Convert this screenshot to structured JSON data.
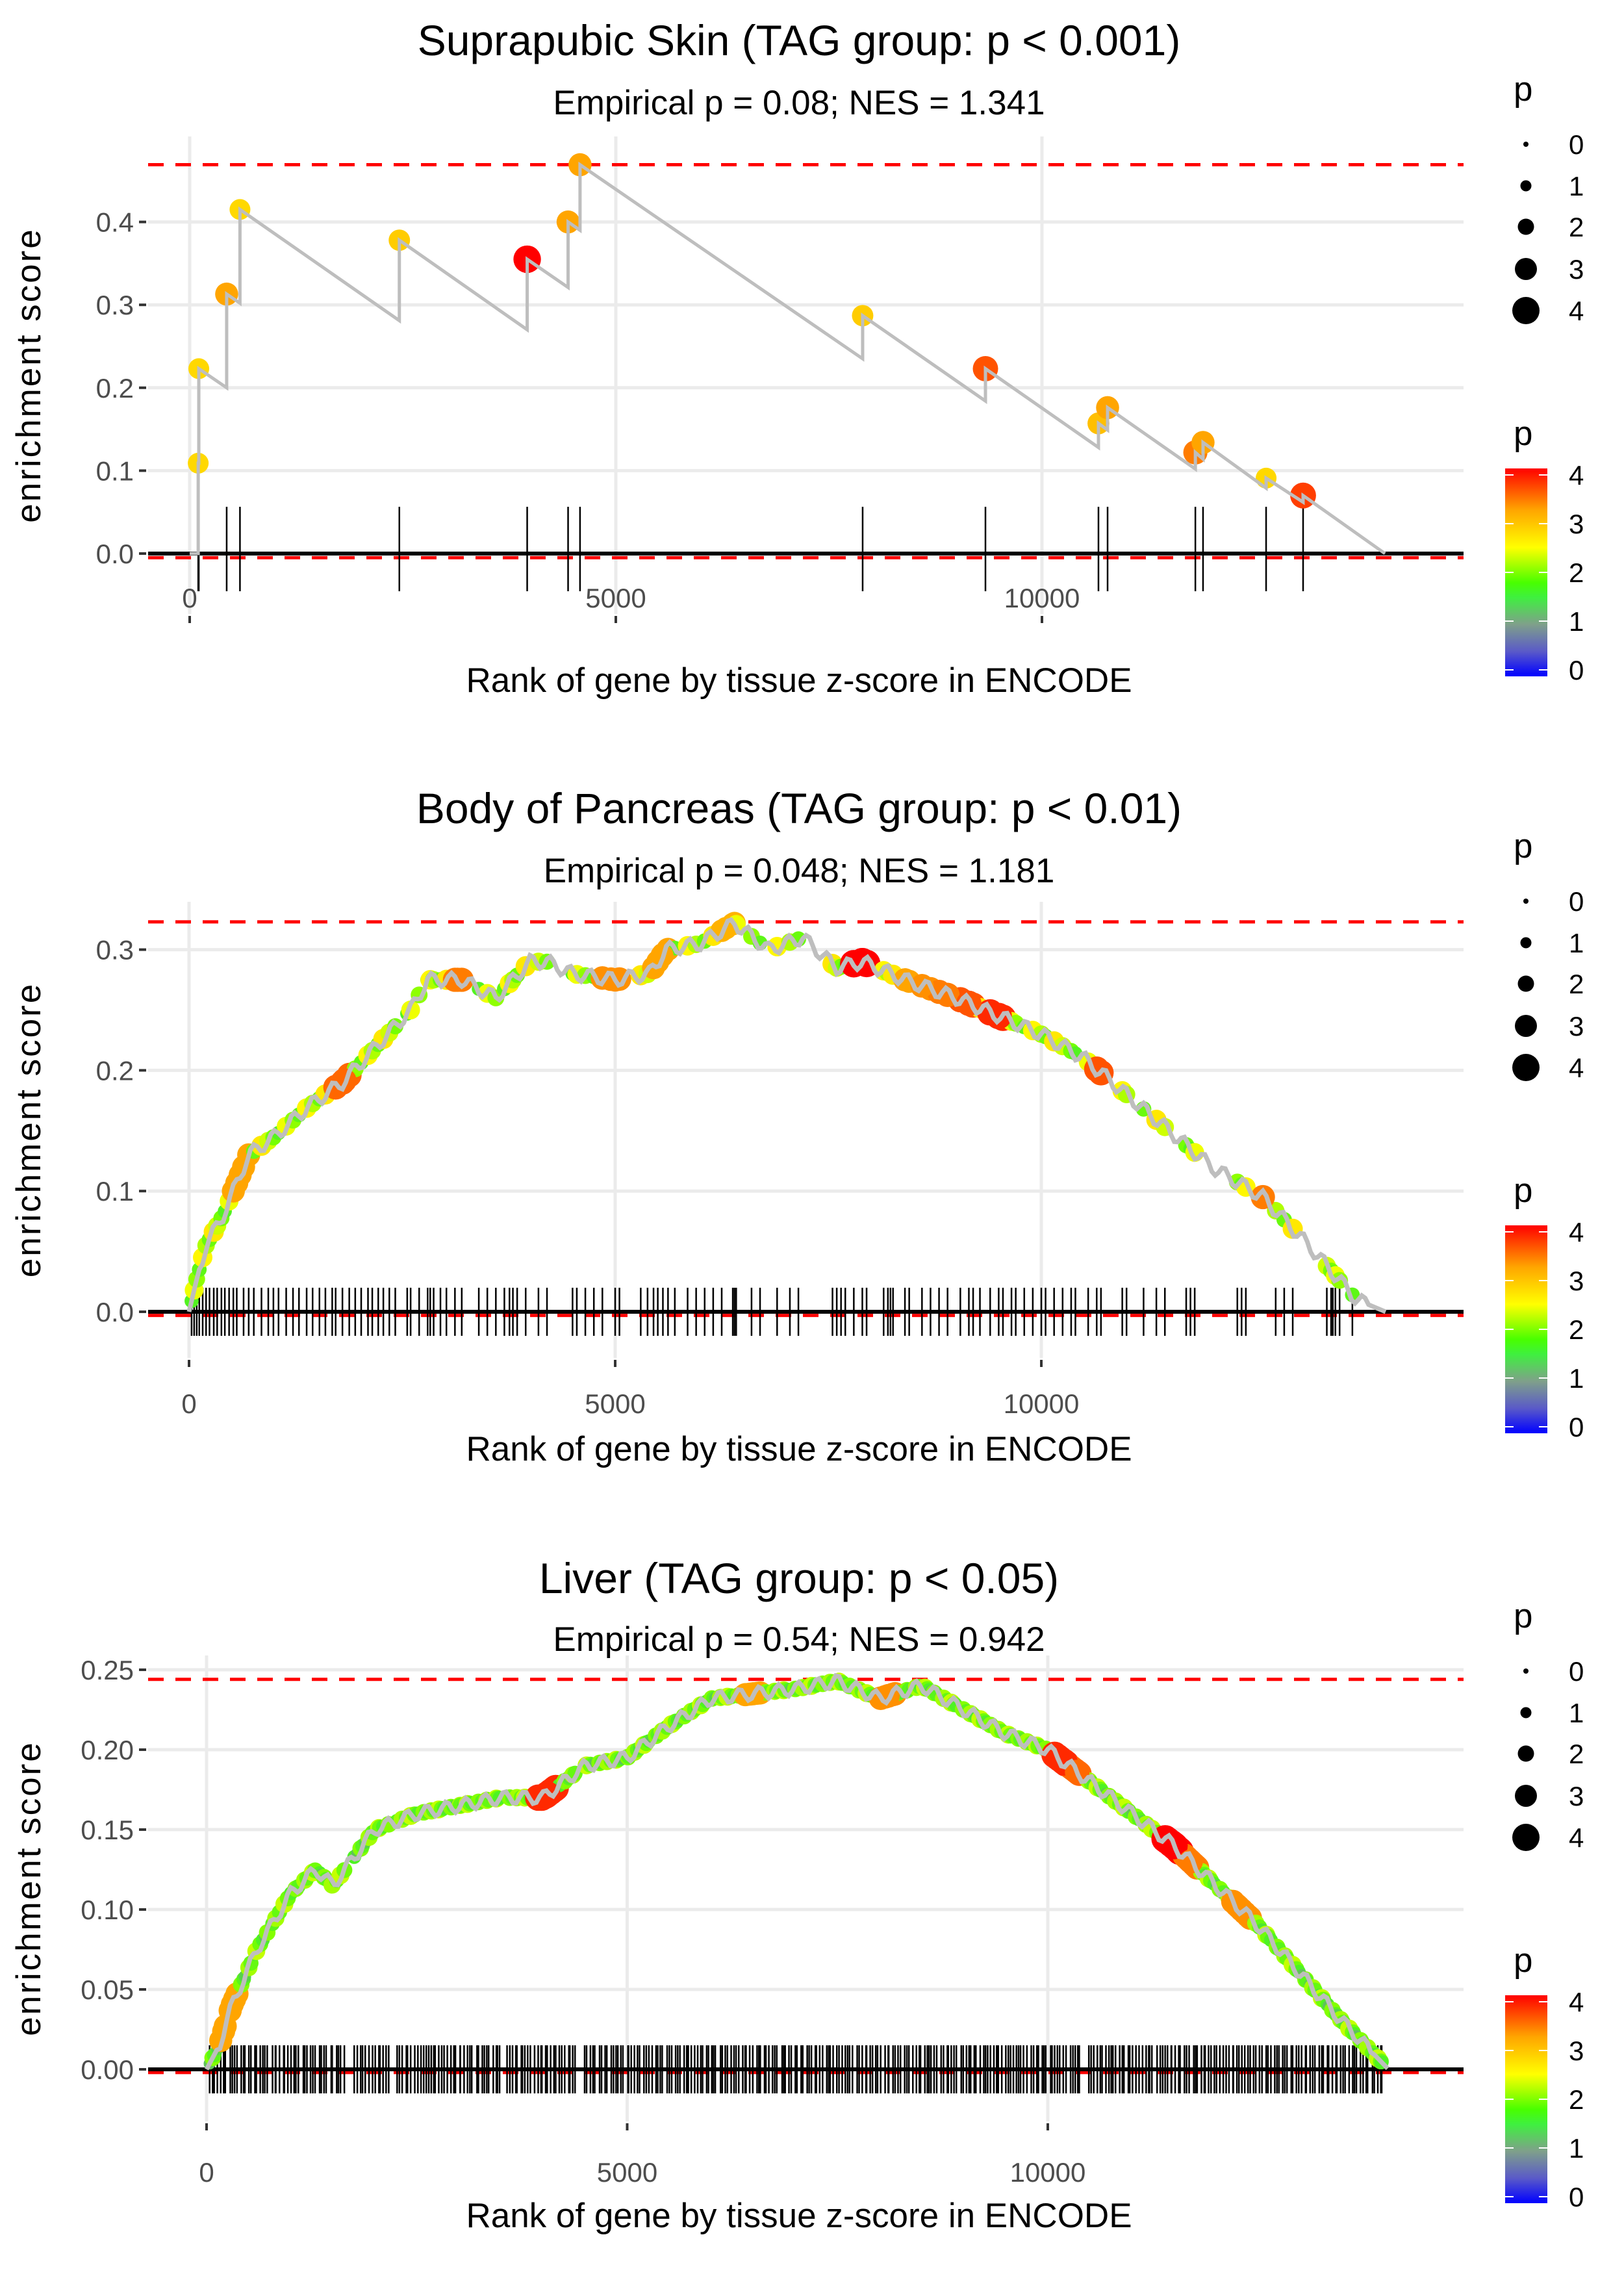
{
  "chart_data": [
    {
      "type": "line",
      "id": "suprapubic-skin",
      "title": "Suprapubic Skin (TAG group: p < 0.001)",
      "subtitle": "Empirical p = 0.08; NES = 1.341",
      "xlabel": "Rank of gene by tissue z-score in ENCODE",
      "ylabel": "enrichment score",
      "xlim": [
        -900,
        14900
      ],
      "ylim": [
        -0.06,
        0.5
      ],
      "x_ticks": [
        0,
        5000,
        10000
      ],
      "x_tick_labels": [
        "0",
        "5000",
        "10000"
      ],
      "y_ticks": [
        0.0,
        0.1,
        0.2,
        0.3,
        0.4
      ],
      "y_tick_labels": [
        "0.0",
        "0.1",
        "0.2",
        "0.3",
        "0.4"
      ],
      "max_es_line": 0.469,
      "min_es_line": -0.005,
      "n_genes": 14025,
      "hits": [
        {
          "rank": 100,
          "es_before": 0.0,
          "es": 0.109,
          "p": 2.8
        },
        {
          "rank": 107,
          "es_before": 0.109,
          "es": 0.223,
          "p": 2.8
        },
        {
          "rank": 434,
          "es_before": 0.2,
          "es": 0.313,
          "p": 3.2
        },
        {
          "rank": 590,
          "es_before": 0.302,
          "es": 0.415,
          "p": 2.8
        },
        {
          "rank": 2460,
          "es_before": 0.281,
          "es": 0.378,
          "p": 2.9
        },
        {
          "rank": 3960,
          "es_before": 0.27,
          "es": 0.355,
          "p": 4.0
        },
        {
          "rank": 4440,
          "es_before": 0.321,
          "es": 0.4,
          "p": 3.2
        },
        {
          "rank": 4580,
          "es_before": 0.39,
          "es": 0.469,
          "p": 3.2
        },
        {
          "rank": 7896,
          "es_before": 0.235,
          "es": 0.287,
          "p": 2.9
        },
        {
          "rank": 9337,
          "es_before": 0.184,
          "es": 0.223,
          "p": 3.6
        },
        {
          "rank": 10663,
          "es_before": 0.128,
          "es": 0.157,
          "p": 3.0
        },
        {
          "rank": 10770,
          "es_before": 0.149,
          "es": 0.176,
          "p": 3.2
        },
        {
          "rank": 11800,
          "es_before": 0.102,
          "es": 0.122,
          "p": 3.4
        },
        {
          "rank": 11890,
          "es_before": 0.114,
          "es": 0.134,
          "p": 3.2
        },
        {
          "rank": 12630,
          "es_before": 0.079,
          "es": 0.091,
          "p": 2.8
        },
        {
          "rank": 13064,
          "es_before": 0.062,
          "es": 0.07,
          "p": 3.7
        }
      ],
      "legend_size": {
        "title": "p",
        "values": [
          "0",
          "1",
          "2",
          "3",
          "4"
        ]
      },
      "legend_color": {
        "title": "p",
        "values": [
          "4",
          "3",
          "2",
          "1",
          "0"
        ]
      }
    },
    {
      "type": "line",
      "id": "body-of-pancreas",
      "title": "Body of Pancreas (TAG group: p < 0.01)",
      "subtitle": "Empirical p = 0.048; NES = 1.181",
      "xlabel": "Rank of gene by tissue z-score in ENCODE",
      "ylabel": "enrichment score",
      "xlim": [
        -900,
        14900
      ],
      "ylim": [
        -0.03,
        0.345
      ],
      "x_ticks": [
        0,
        5000,
        10000
      ],
      "x_tick_labels": [
        "0",
        "5000",
        "10000"
      ],
      "y_ticks": [
        0.0,
        0.1,
        0.2,
        0.3
      ],
      "y_tick_labels": [
        "0.0",
        "0.1",
        "0.2",
        "0.3"
      ],
      "max_es_line": 0.323,
      "min_es_line": -0.003,
      "n_genes": 14040,
      "curve": [
        [
          0,
          0
        ],
        [
          100,
          0.03
        ],
        [
          200,
          0.055
        ],
        [
          400,
          0.08
        ],
        [
          700,
          0.13
        ],
        [
          1000,
          0.145
        ],
        [
          1400,
          0.17
        ],
        [
          1800,
          0.19
        ],
        [
          2200,
          0.22
        ],
        [
          2600,
          0.25
        ],
        [
          2800,
          0.275
        ],
        [
          3200,
          0.275
        ],
        [
          3600,
          0.26
        ],
        [
          4000,
          0.29
        ],
        [
          4200,
          0.29
        ],
        [
          4500,
          0.28
        ],
        [
          5000,
          0.275
        ],
        [
          5400,
          0.28
        ],
        [
          5600,
          0.3
        ],
        [
          6000,
          0.305
        ],
        [
          6400,
          0.322
        ],
        [
          6800,
          0.3
        ],
        [
          7200,
          0.31
        ],
        [
          7600,
          0.285
        ],
        [
          7900,
          0.29
        ],
        [
          8400,
          0.275
        ],
        [
          9000,
          0.26
        ],
        [
          9500,
          0.245
        ],
        [
          10000,
          0.23
        ],
        [
          10500,
          0.21
        ],
        [
          11000,
          0.18
        ],
        [
          11500,
          0.15
        ],
        [
          12000,
          0.12
        ],
        [
          12600,
          0.095
        ],
        [
          13200,
          0.05
        ],
        [
          13700,
          0.01
        ],
        [
          14040,
          0
        ]
      ],
      "hit_ranks": [
        30,
        60,
        90,
        120,
        160,
        200,
        240,
        290,
        330,
        380,
        420,
        470,
        520,
        560,
        640,
        700,
        760,
        850,
        930,
        990,
        1050,
        1140,
        1220,
        1290,
        1380,
        1450,
        1530,
        1600,
        1680,
        1720,
        1800,
        1880,
        1950,
        2020,
        2100,
        2150,
        2220,
        2280,
        2350,
        2420,
        2560,
        2600,
        2700,
        2800,
        2830,
        2870,
        2950,
        3020,
        3120,
        3200,
        3400,
        3500,
        3600,
        3700,
        3760,
        3800,
        3850,
        3950,
        4100,
        4200,
        4500,
        4550,
        4650,
        4750,
        4850,
        5000,
        5050,
        5300,
        5380,
        5450,
        5500,
        5560,
        5620,
        5700,
        5850,
        5950,
        6050,
        6150,
        6250,
        6380,
        6400,
        6420,
        6600,
        6700,
        6900,
        7050,
        7150,
        7550,
        7600,
        7650,
        7700,
        7800,
        7900,
        7950,
        8150,
        8200,
        8230,
        8260,
        8400,
        8450,
        8600,
        8700,
        8800,
        8900,
        9050,
        9150,
        9200,
        9280,
        9400,
        9500,
        9550,
        9650,
        9700,
        9800,
        9900,
        10000,
        10050,
        10150,
        10250,
        10350,
        10400,
        10550,
        10650,
        10700,
        10950,
        11000,
        11200,
        11350,
        11450,
        11700,
        11750,
        11800,
        12300,
        12350,
        12400,
        12750,
        12850,
        12950,
        13350,
        13400,
        13420,
        13450,
        13500,
        13650
      ],
      "p_highlights": [
        [
          600,
          3.2
        ],
        [
          1820,
          3.5
        ],
        [
          3150,
          3.4
        ],
        [
          4950,
          3.3
        ],
        [
          5550,
          3.2
        ],
        [
          6300,
          3.1
        ],
        [
          7900,
          4.0
        ],
        [
          8400,
          3.2
        ],
        [
          8600,
          3.3
        ],
        [
          8900,
          3.4
        ],
        [
          9150,
          3.6
        ],
        [
          9500,
          3.8
        ],
        [
          10700,
          3.6
        ],
        [
          12600,
          3.4
        ]
      ],
      "p_default": 2.2,
      "legend_size": {
        "title": "p",
        "values": [
          "0",
          "1",
          "2",
          "3",
          "4"
        ]
      },
      "legend_color": {
        "title": "p",
        "values": [
          "4",
          "3",
          "2",
          "1",
          "0"
        ]
      }
    },
    {
      "type": "line",
      "id": "liver",
      "title": "Liver (TAG group: p < 0.05)",
      "subtitle": "Empirical p = 0.54; NES = 0.942",
      "xlabel": "Rank of gene by tissue z-score in ENCODE",
      "ylabel": "enrichment score",
      "xlim": [
        -900,
        14900
      ],
      "ylim": [
        -0.018,
        0.258
      ],
      "x_ticks": [
        0,
        5000,
        10000
      ],
      "x_tick_labels": [
        "0",
        "5000",
        "10000"
      ],
      "y_ticks": [
        0.0,
        0.05,
        0.1,
        0.15,
        0.2,
        0.25
      ],
      "y_tick_labels": [
        "0.00",
        "0.05",
        "0.10",
        "0.15",
        "0.20",
        "0.25"
      ],
      "max_es_line": 0.244,
      "min_es_line": -0.002,
      "n_genes": 14050,
      "curve": [
        [
          0,
          0
        ],
        [
          150,
          0.015
        ],
        [
          300,
          0.04
        ],
        [
          600,
          0.075
        ],
        [
          1000,
          0.11
        ],
        [
          1300,
          0.125
        ],
        [
          1500,
          0.115
        ],
        [
          2000,
          0.15
        ],
        [
          2500,
          0.16
        ],
        [
          3000,
          0.165
        ],
        [
          3500,
          0.17
        ],
        [
          4000,
          0.17
        ],
        [
          4500,
          0.19
        ],
        [
          5000,
          0.195
        ],
        [
          5500,
          0.215
        ],
        [
          6000,
          0.232
        ],
        [
          6500,
          0.235
        ],
        [
          7000,
          0.238
        ],
        [
          7500,
          0.243
        ],
        [
          8000,
          0.232
        ],
        [
          8500,
          0.24
        ],
        [
          9000,
          0.225
        ],
        [
          9500,
          0.21
        ],
        [
          10000,
          0.2
        ],
        [
          10500,
          0.18
        ],
        [
          11000,
          0.16
        ],
        [
          11500,
          0.14
        ],
        [
          12000,
          0.115
        ],
        [
          12500,
          0.09
        ],
        [
          13000,
          0.06
        ],
        [
          13500,
          0.03
        ],
        [
          14050,
          0
        ]
      ],
      "hit_range": [
        20,
        14000
      ],
      "hit_count": 420,
      "hit_gaps": [
        [
          1650,
          1750
        ],
        [
          2200,
          2250
        ],
        [
          3500,
          3560
        ],
        [
          4400,
          4450
        ],
        [
          10400,
          10450
        ]
      ],
      "p_highlights": [
        [
          280,
          3.2
        ],
        [
          4050,
          3.8
        ],
        [
          6500,
          3.2
        ],
        [
          8100,
          3.3
        ],
        [
          10200,
          3.8
        ],
        [
          10350,
          3.5
        ],
        [
          11500,
          4.0
        ],
        [
          11700,
          3.4
        ],
        [
          12300,
          3.3
        ]
      ],
      "p_default": 1.8,
      "legend_size": {
        "title": "p",
        "values": [
          "0",
          "1",
          "2",
          "3",
          "4"
        ]
      },
      "legend_color": {
        "title": "p",
        "values": [
          "4",
          "3",
          "2",
          "1",
          "0"
        ]
      }
    }
  ],
  "colors": {
    "max_line": "#ff0000",
    "curve": "#bebebe",
    "grid": "#ebebeb",
    "zero_line": "#000000",
    "rug": "#000000",
    "gradient": [
      "#0000ff",
      "#7f7f9f",
      "#48ff00",
      "#ffff00",
      "#ffa500",
      "#ff0000"
    ]
  }
}
